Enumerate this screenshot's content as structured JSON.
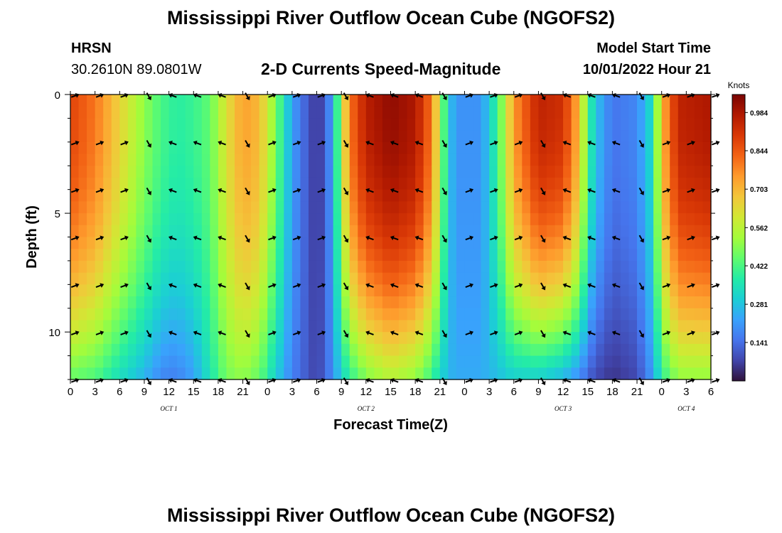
{
  "header": {
    "title": "Mississippi River Outflow Ocean Cube (NGOFS2)",
    "station": "HRSN",
    "coords": "30.2610N  89.0801W",
    "subtitle": "2-D Currents Speed-Magnitude",
    "model_start_label": "Model Start Time",
    "model_start_value": "10/01/2022 Hour 21"
  },
  "footer": {
    "title": "Mississippi River Outflow Ocean Cube (NGOFS2)"
  },
  "chart_data": {
    "type": "heatmap",
    "xlabel": "Forecast Time(Z)",
    "ylabel": "Depth (ft)",
    "x_range_hours": [
      0,
      78
    ],
    "x_tick_labels": [
      "0",
      "3",
      "6",
      "9",
      "12",
      "15",
      "18",
      "21",
      "0",
      "3",
      "6",
      "9",
      "12",
      "15",
      "18",
      "21",
      "0",
      "3",
      "6",
      "9",
      "12",
      "15",
      "18",
      "21",
      "0",
      "3",
      "6"
    ],
    "day_labels": [
      {
        "text": "OCT 1",
        "hour": 12
      },
      {
        "text": "OCT 2",
        "hour": 36
      },
      {
        "text": "OCT 3",
        "hour": 60
      },
      {
        "text": "OCT 4",
        "hour": 75
      }
    ],
    "y_range_ft": [
      0,
      12
    ],
    "y_inverted": true,
    "y_tick_labels": [
      "0",
      "5",
      "10"
    ],
    "y_tick_values": [
      0,
      5,
      10
    ],
    "colorbar": {
      "label": "Knots",
      "range": [
        0.0,
        1.05
      ],
      "ticks": [
        "0.984",
        "0.844",
        "0.703",
        "0.562",
        "0.422",
        "0.281",
        "0.141"
      ],
      "tick_values": [
        0.984,
        0.844,
        0.703,
        0.562,
        0.422,
        0.281,
        0.141
      ]
    },
    "speed_profile_knots": [
      {
        "hour": 0,
        "surface": 0.88,
        "bottom": 0.45
      },
      {
        "hour": 3,
        "surface": 0.8,
        "bottom": 0.42
      },
      {
        "hour": 6,
        "surface": 0.65,
        "bottom": 0.33
      },
      {
        "hour": 9,
        "surface": 0.5,
        "bottom": 0.25
      },
      {
        "hour": 11,
        "surface": 0.42,
        "bottom": 0.18
      },
      {
        "hour": 12,
        "surface": 0.4,
        "bottom": 0.17
      },
      {
        "hour": 13,
        "surface": 0.38,
        "bottom": 0.17
      },
      {
        "hour": 15,
        "surface": 0.4,
        "bottom": 0.22
      },
      {
        "hour": 17,
        "surface": 0.45,
        "bottom": 0.35
      },
      {
        "hour": 19,
        "surface": 0.62,
        "bottom": 0.47
      },
      {
        "hour": 21,
        "surface": 0.74,
        "bottom": 0.5
      },
      {
        "hour": 23,
        "surface": 0.7,
        "bottom": 0.45
      },
      {
        "hour": 25,
        "surface": 0.48,
        "bottom": 0.3
      },
      {
        "hour": 27,
        "surface": 0.22,
        "bottom": 0.17
      },
      {
        "hour": 29,
        "surface": 0.1,
        "bottom": 0.1
      },
      {
        "hour": 30,
        "surface": 0.05,
        "bottom": 0.07
      },
      {
        "hour": 31,
        "surface": 0.1,
        "bottom": 0.12
      },
      {
        "hour": 32,
        "surface": 0.25,
        "bottom": 0.2
      },
      {
        "hour": 33,
        "surface": 0.55,
        "bottom": 0.3
      },
      {
        "hour": 34,
        "surface": 0.8,
        "bottom": 0.38
      },
      {
        "hour": 36,
        "surface": 0.96,
        "bottom": 0.48
      },
      {
        "hour": 39,
        "surface": 1.02,
        "bottom": 0.55
      },
      {
        "hour": 42,
        "surface": 0.98,
        "bottom": 0.5
      },
      {
        "hour": 44,
        "surface": 0.8,
        "bottom": 0.4
      },
      {
        "hour": 45,
        "surface": 0.55,
        "bottom": 0.32
      },
      {
        "hour": 46,
        "surface": 0.3,
        "bottom": 0.26
      },
      {
        "hour": 47,
        "surface": 0.2,
        "bottom": 0.24
      },
      {
        "hour": 50,
        "surface": 0.2,
        "bottom": 0.24
      },
      {
        "hour": 52,
        "surface": 0.4,
        "bottom": 0.27
      },
      {
        "hour": 54,
        "surface": 0.75,
        "bottom": 0.3
      },
      {
        "hour": 57,
        "surface": 0.95,
        "bottom": 0.3
      },
      {
        "hour": 60,
        "surface": 0.92,
        "bottom": 0.25
      },
      {
        "hour": 62,
        "surface": 0.7,
        "bottom": 0.18
      },
      {
        "hour": 63,
        "surface": 0.42,
        "bottom": 0.12
      },
      {
        "hour": 64,
        "surface": 0.28,
        "bottom": 0.08
      },
      {
        "hour": 66,
        "surface": 0.15,
        "bottom": 0.05
      },
      {
        "hour": 69,
        "surface": 0.18,
        "bottom": 0.08
      },
      {
        "hour": 71,
        "surface": 0.35,
        "bottom": 0.22
      },
      {
        "hour": 72,
        "surface": 0.7,
        "bottom": 0.38
      },
      {
        "hour": 74,
        "surface": 0.95,
        "bottom": 0.5
      },
      {
        "hour": 78,
        "surface": 0.98,
        "bottom": 0.5
      }
    ],
    "colors": {
      "scale": [
        "#30123b",
        "#4145ab",
        "#4675ed",
        "#39a2fc",
        "#1bcfd4",
        "#24eca6",
        "#61fc6c",
        "#a4fc3b",
        "#d1e834",
        "#f3c63a",
        "#fe9b2d",
        "#f36315",
        "#d93806",
        "#b11901",
        "#7a0403"
      ]
    }
  }
}
